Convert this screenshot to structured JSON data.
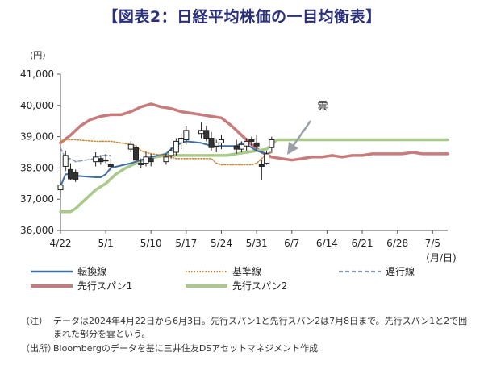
{
  "title": "【図表2：日経平均株価の一目均衡表】",
  "chart_data": {
    "type": "candlestick+line",
    "y_unit_label": "(円)",
    "x_unit_label": "(月/日)",
    "ylim": [
      36000,
      41000
    ],
    "yticks": [
      36000,
      37000,
      38000,
      39000,
      40000,
      41000
    ],
    "ytick_labels": [
      "36,000",
      "37,000",
      "38,000",
      "39,000",
      "40,000",
      "41,000"
    ],
    "x_start": "4/22",
    "x_end": "7/8",
    "xticks": [
      "4/22",
      "5/1",
      "5/10",
      "5/17",
      "5/24",
      "5/31",
      "6/7",
      "6/14",
      "6/21",
      "6/28",
      "7/5"
    ],
    "xtick_days": [
      0,
      9,
      18,
      25,
      32,
      39,
      46,
      53,
      60,
      67,
      74
    ],
    "annotation": "雲",
    "candles": [
      {
        "day": 0,
        "open": 37300,
        "high": 37600,
        "low": 37050,
        "close": 37450
      },
      {
        "day": 1,
        "open": 38050,
        "high": 38550,
        "low": 37900,
        "close": 38400
      },
      {
        "day": 2,
        "open": 37950,
        "high": 38150,
        "low": 37600,
        "close": 37650
      },
      {
        "day": 3,
        "open": 37850,
        "high": 37950,
        "low": 37550,
        "close": 37620
      },
      {
        "day": 7,
        "open": 38200,
        "high": 38500,
        "low": 38050,
        "close": 38350
      },
      {
        "day": 8,
        "open": 38300,
        "high": 38400,
        "low": 38100,
        "close": 38200
      },
      {
        "day": 9,
        "open": 38250,
        "high": 38450,
        "low": 38150,
        "close": 38250
      },
      {
        "day": 10,
        "open": 38100,
        "high": 38300,
        "low": 37900,
        "close": 38050
      },
      {
        "day": 14,
        "open": 38600,
        "high": 38850,
        "low": 38500,
        "close": 38750
      },
      {
        "day": 15,
        "open": 38650,
        "high": 38800,
        "low": 38150,
        "close": 38250
      },
      {
        "day": 16,
        "open": 38100,
        "high": 38300,
        "low": 38000,
        "close": 38150
      },
      {
        "day": 17,
        "open": 38150,
        "high": 38500,
        "low": 38050,
        "close": 38350
      },
      {
        "day": 18,
        "open": 38300,
        "high": 38450,
        "low": 38050,
        "close": 38200
      },
      {
        "day": 21,
        "open": 38200,
        "high": 38450,
        "low": 38100,
        "close": 38350
      },
      {
        "day": 22,
        "open": 38400,
        "high": 38650,
        "low": 38300,
        "close": 38550
      },
      {
        "day": 23,
        "open": 38500,
        "high": 38950,
        "low": 38400,
        "close": 38850
      },
      {
        "day": 24,
        "open": 38800,
        "high": 39100,
        "low": 38600,
        "close": 38950
      },
      {
        "day": 25,
        "open": 38900,
        "high": 39350,
        "low": 38750,
        "close": 39200
      },
      {
        "day": 28,
        "open": 39100,
        "high": 39450,
        "low": 38950,
        "close": 39200
      },
      {
        "day": 29,
        "open": 39200,
        "high": 39350,
        "low": 38850,
        "close": 38950
      },
      {
        "day": 30,
        "open": 38950,
        "high": 39150,
        "low": 38550,
        "close": 38650
      },
      {
        "day": 31,
        "open": 38700,
        "high": 38900,
        "low": 38500,
        "close": 38800
      },
      {
        "day": 32,
        "open": 38800,
        "high": 39050,
        "low": 38600,
        "close": 38900
      },
      {
        "day": 35,
        "open": 38700,
        "high": 38900,
        "low": 38450,
        "close": 38600
      },
      {
        "day": 36,
        "open": 38600,
        "high": 38850,
        "low": 38500,
        "close": 38750
      },
      {
        "day": 37,
        "open": 38700,
        "high": 38950,
        "low": 38550,
        "close": 38850
      },
      {
        "day": 38,
        "open": 38900,
        "high": 39000,
        "low": 38700,
        "close": 38850
      },
      {
        "day": 39,
        "open": 38800,
        "high": 39050,
        "low": 38550,
        "close": 38700
      },
      {
        "day": 40,
        "open": 38100,
        "high": 38250,
        "low": 37600,
        "close": 38050
      },
      {
        "day": 41,
        "open": 38150,
        "high": 38550,
        "low": 38100,
        "close": 38450
      },
      {
        "day": 42,
        "open": 38650,
        "high": 39000,
        "low": 38550,
        "close": 38900
      }
    ],
    "series": [
      {
        "name": "転換線",
        "color": "#3f6fa5",
        "style": "solid",
        "points": [
          [
            0,
            37400
          ],
          [
            1,
            37800
          ],
          [
            2,
            37800
          ],
          [
            3,
            37750
          ],
          [
            7,
            37700
          ],
          [
            8,
            37700
          ],
          [
            9,
            37800
          ],
          [
            10,
            38000
          ],
          [
            14,
            38150
          ],
          [
            15,
            38200
          ],
          [
            16,
            38250
          ],
          [
            17,
            38300
          ],
          [
            18,
            38350
          ],
          [
            21,
            38450
          ],
          [
            22,
            38600
          ],
          [
            23,
            38700
          ],
          [
            24,
            38800
          ],
          [
            25,
            38850
          ],
          [
            28,
            38800
          ],
          [
            29,
            38750
          ],
          [
            30,
            38700
          ],
          [
            31,
            38700
          ],
          [
            32,
            38700
          ],
          [
            35,
            38700
          ],
          [
            36,
            38800
          ],
          [
            37,
            38750
          ],
          [
            38,
            38650
          ],
          [
            39,
            38550
          ],
          [
            40,
            38500
          ],
          [
            41,
            38450
          ],
          [
            42,
            38500
          ]
        ]
      },
      {
        "name": "基準線",
        "color": "#c98a3c",
        "style": "dotted",
        "points": [
          [
            0,
            38850
          ],
          [
            1,
            38900
          ],
          [
            2,
            38900
          ],
          [
            3,
            38900
          ],
          [
            7,
            38850
          ],
          [
            8,
            38850
          ],
          [
            9,
            38850
          ],
          [
            10,
            38850
          ],
          [
            14,
            38750
          ],
          [
            15,
            38700
          ],
          [
            16,
            38550
          ],
          [
            17,
            38500
          ],
          [
            18,
            38450
          ],
          [
            21,
            38400
          ],
          [
            22,
            38350
          ],
          [
            23,
            38300
          ],
          [
            24,
            38300
          ],
          [
            25,
            38300
          ],
          [
            28,
            38300
          ],
          [
            29,
            38300
          ],
          [
            30,
            38300
          ],
          [
            31,
            38150
          ],
          [
            32,
            38100
          ],
          [
            35,
            38100
          ],
          [
            36,
            38100
          ],
          [
            37,
            38100
          ],
          [
            38,
            38100
          ],
          [
            39,
            38150
          ],
          [
            40,
            38300
          ],
          [
            41,
            38450
          ],
          [
            42,
            38500
          ]
        ]
      },
      {
        "name": "遅行線",
        "color": "#8a9ab5",
        "style": "dashed",
        "points": [
          [
            0,
            38650
          ],
          [
            1,
            38300
          ],
          [
            2,
            38300
          ],
          [
            3,
            38200
          ],
          [
            7,
            38300
          ],
          [
            8,
            38400
          ],
          [
            9,
            38400
          ],
          [
            10,
            38400
          ]
        ]
      },
      {
        "name": "先行スパン1",
        "color": "#c97a7a",
        "style": "solid",
        "points": [
          [
            0,
            38800
          ],
          [
            2,
            39050
          ],
          [
            4,
            39350
          ],
          [
            6,
            39550
          ],
          [
            8,
            39650
          ],
          [
            10,
            39700
          ],
          [
            12,
            39700
          ],
          [
            14,
            39800
          ],
          [
            16,
            39950
          ],
          [
            18,
            40050
          ],
          [
            20,
            39950
          ],
          [
            22,
            39900
          ],
          [
            24,
            39800
          ],
          [
            26,
            39750
          ],
          [
            28,
            39700
          ],
          [
            30,
            39650
          ],
          [
            32,
            39600
          ],
          [
            34,
            39350
          ],
          [
            36,
            39050
          ],
          [
            38,
            38750
          ],
          [
            40,
            38500
          ],
          [
            42,
            38350
          ],
          [
            44,
            38300
          ],
          [
            46,
            38250
          ],
          [
            48,
            38300
          ],
          [
            50,
            38350
          ],
          [
            52,
            38350
          ],
          [
            54,
            38400
          ],
          [
            56,
            38350
          ],
          [
            58,
            38400
          ],
          [
            60,
            38400
          ],
          [
            62,
            38450
          ],
          [
            64,
            38450
          ],
          [
            66,
            38450
          ],
          [
            68,
            38450
          ],
          [
            70,
            38500
          ],
          [
            72,
            38450
          ],
          [
            74,
            38450
          ],
          [
            76,
            38450
          ],
          [
            77,
            38450
          ]
        ]
      },
      {
        "name": "先行スパン2",
        "color": "#a9c98a",
        "style": "solid",
        "points": [
          [
            0,
            36600
          ],
          [
            2,
            36600
          ],
          [
            3,
            36700
          ],
          [
            5,
            37000
          ],
          [
            7,
            37300
          ],
          [
            9,
            37500
          ],
          [
            11,
            37800
          ],
          [
            13,
            38000
          ],
          [
            15,
            38150
          ],
          [
            17,
            38300
          ],
          [
            19,
            38350
          ],
          [
            21,
            38400
          ],
          [
            23,
            38400
          ],
          [
            25,
            38400
          ],
          [
            27,
            38400
          ],
          [
            29,
            38400
          ],
          [
            31,
            38400
          ],
          [
            33,
            38400
          ],
          [
            35,
            38450
          ],
          [
            37,
            38500
          ],
          [
            39,
            38550
          ],
          [
            41,
            38600
          ],
          [
            43,
            38900
          ],
          [
            45,
            38900
          ],
          [
            50,
            38900
          ],
          [
            55,
            38900
          ],
          [
            60,
            38900
          ],
          [
            65,
            38900
          ],
          [
            70,
            38900
          ],
          [
            77,
            38900
          ]
        ]
      }
    ]
  },
  "notes": [
    {
      "tag": "（注）",
      "text": "データは2024年4月22日から6月3日。先行スパン1と先行スパン2は7月8日まで。先行スパン1と2で囲まれた部分を雲という。"
    },
    {
      "tag": "（出所）",
      "text": "Bloombergのデータを基に三井住友DSアセットマネジメント作成"
    }
  ]
}
